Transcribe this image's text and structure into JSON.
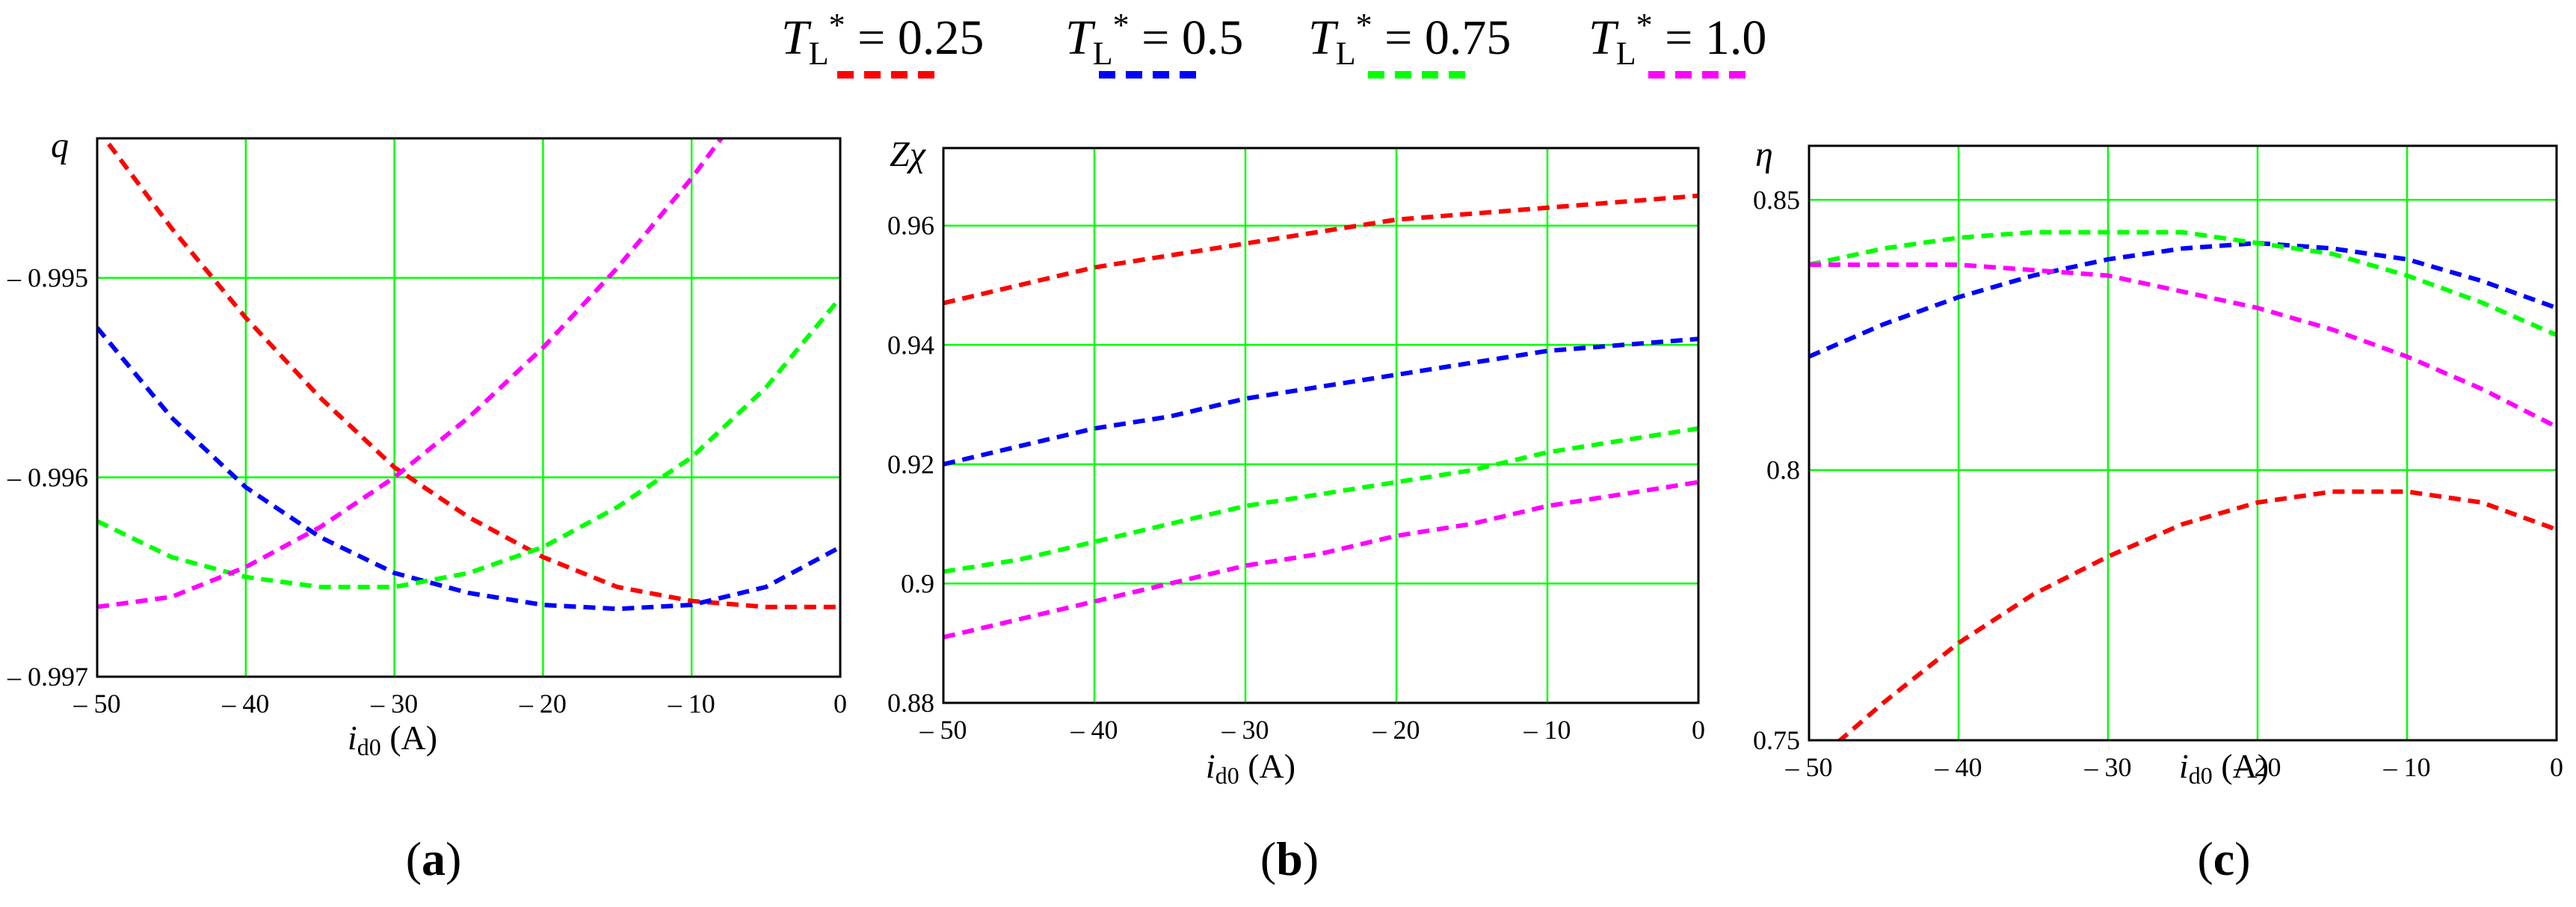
{
  "legend": {
    "placement": "top-center",
    "line_style": "dashed",
    "entries": [
      {
        "prefix": "T",
        "sub": "L",
        "sup": "*",
        "value": " = 0.25",
        "color": "#ff0000"
      },
      {
        "prefix": "T",
        "sub": "L",
        "sup": "*",
        "value": " = 0.5",
        "color": "#0000ff"
      },
      {
        "prefix": "T",
        "sub": "L",
        "sup": "*",
        "value": " = 0.75",
        "color": "#00ff00"
      },
      {
        "prefix": "T",
        "sub": "L",
        "sup": "*",
        "value": " = 1.0",
        "color": "#ff00ff"
      }
    ]
  },
  "colors": {
    "grid": "#00ff00",
    "axis": "#000000"
  },
  "chart_data": [
    {
      "type": "line",
      "panel_label": "a",
      "ylabel": "q",
      "xlabel": {
        "italic": "i",
        "sub": "d0",
        "rest": " (A)"
      },
      "xlim": [
        -50,
        0
      ],
      "ylim": [
        -0.997,
        -0.9943
      ],
      "x_ticks": [
        -50,
        -40,
        -30,
        -20,
        -10,
        0
      ],
      "x_tick_labels": [
        "– 50",
        "– 40",
        "– 30",
        "– 20",
        "– 10",
        "0"
      ],
      "y_ticks": [
        -0.997,
        -0.996,
        -0.995
      ],
      "y_tick_labels": [
        "– 0.997",
        "– 0.996",
        "– 0.995"
      ],
      "grid": true,
      "x": [
        -50,
        -45,
        -40,
        -35,
        -30,
        -25,
        -20,
        -15,
        -10,
        -5,
        0
      ],
      "series": [
        {
          "values": [
            -0.99425,
            -0.99475,
            -0.9952,
            -0.9956,
            -0.99595,
            -0.9962,
            -0.9964,
            -0.99655,
            -0.99662,
            -0.99665,
            -0.99665
          ]
        },
        {
          "values": [
            -0.99525,
            -0.9957,
            -0.99605,
            -0.9963,
            -0.99648,
            -0.99658,
            -0.99664,
            -0.99666,
            -0.99664,
            -0.99655,
            -0.99635
          ]
        },
        {
          "values": [
            -0.99622,
            -0.9964,
            -0.9965,
            -0.99655,
            -0.99655,
            -0.99648,
            -0.99635,
            -0.99615,
            -0.9959,
            -0.99555,
            -0.9951
          ]
        },
        {
          "values": [
            -0.99665,
            -0.9966,
            -0.99645,
            -0.99625,
            -0.996,
            -0.9957,
            -0.99535,
            -0.99495,
            -0.9945,
            -0.994,
            -0.9935
          ]
        }
      ]
    },
    {
      "type": "line",
      "panel_label": "b",
      "ylabel": "Zχ",
      "xlabel": {
        "italic": "i",
        "sub": "d0",
        "rest": " (A)"
      },
      "xlim": [
        -50,
        0
      ],
      "ylim": [
        0.88,
        0.973
      ],
      "x_ticks": [
        -50,
        -40,
        -30,
        -20,
        -10,
        0
      ],
      "x_tick_labels": [
        "– 50",
        "– 40",
        "– 30",
        "– 20",
        "– 10",
        "0"
      ],
      "y_ticks": [
        0.88,
        0.9,
        0.92,
        0.94,
        0.96
      ],
      "y_tick_labels": [
        "0.88",
        "0.9",
        "0.92",
        "0.94",
        "0.96"
      ],
      "grid": true,
      "x": [
        -50,
        -45,
        -40,
        -35,
        -30,
        -25,
        -20,
        -15,
        -10,
        -5,
        0
      ],
      "series": [
        {
          "values": [
            0.947,
            0.95,
            0.953,
            0.955,
            0.957,
            0.959,
            0.961,
            0.962,
            0.963,
            0.964,
            0.965
          ]
        },
        {
          "values": [
            0.92,
            0.923,
            0.926,
            0.928,
            0.931,
            0.933,
            0.935,
            0.937,
            0.939,
            0.94,
            0.941
          ]
        },
        {
          "values": [
            0.902,
            0.904,
            0.907,
            0.91,
            0.913,
            0.915,
            0.917,
            0.919,
            0.922,
            0.924,
            0.926
          ]
        },
        {
          "values": [
            0.891,
            0.894,
            0.897,
            0.9,
            0.903,
            0.905,
            0.908,
            0.91,
            0.913,
            0.915,
            0.917
          ]
        }
      ]
    },
    {
      "type": "line",
      "panel_label": "c",
      "ylabel": "η",
      "xlabel": {
        "italic": "i",
        "sub": "d0",
        "rest": " (A)"
      },
      "xlim": [
        -50,
        0
      ],
      "ylim": [
        0.75,
        0.86
      ],
      "x_ticks": [
        -50,
        -40,
        -30,
        -20,
        -10,
        0
      ],
      "x_tick_labels": [
        "– 50",
        "– 40",
        "– 30",
        "– 20",
        "– 10",
        "0"
      ],
      "y_ticks": [
        0.75,
        0.8,
        0.85
      ],
      "y_tick_labels": [
        "0.75",
        "0.8",
        "0.85"
      ],
      "grid": true,
      "x": [
        -50,
        -45,
        -40,
        -35,
        -30,
        -25,
        -20,
        -15,
        -10,
        -5,
        0
      ],
      "series": [
        {
          "values": [
            0.745,
            0.757,
            0.768,
            0.777,
            0.784,
            0.79,
            0.794,
            0.796,
            0.796,
            0.794,
            0.789
          ]
        },
        {
          "values": [
            0.821,
            0.827,
            0.832,
            0.836,
            0.839,
            0.841,
            0.842,
            0.841,
            0.839,
            0.835,
            0.83
          ]
        },
        {
          "values": [
            0.838,
            0.841,
            0.843,
            0.844,
            0.844,
            0.844,
            0.842,
            0.84,
            0.836,
            0.831,
            0.825
          ]
        },
        {
          "values": [
            0.838,
            0.838,
            0.838,
            0.837,
            0.836,
            0.833,
            0.83,
            0.826,
            0.821,
            0.815,
            0.808
          ]
        }
      ]
    }
  ]
}
